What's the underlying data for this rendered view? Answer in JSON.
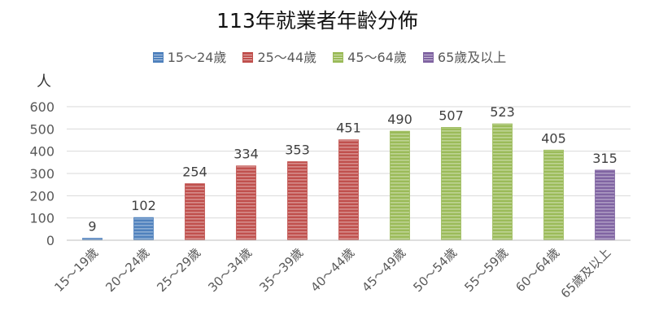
{
  "chart_data": {
    "type": "bar",
    "title": "113年就業者年齡分佈",
    "ylabel": "人",
    "xlabel": "",
    "ylim": [
      0,
      600
    ],
    "yticks": [
      0,
      100,
      200,
      300,
      400,
      500,
      600
    ],
    "grid": true,
    "legend_position": "top",
    "categories": [
      "15～19歲",
      "20～24歲",
      "25～29歲",
      "30～34歲",
      "35～39歲",
      "40～44歲",
      "45～49歲",
      "50～54歲",
      "55～59歲",
      "60～64歲",
      "65歲及以上"
    ],
    "values": [
      9,
      102,
      254,
      334,
      353,
      451,
      490,
      507,
      523,
      405,
      315
    ],
    "series": [
      {
        "name": "15～24歲",
        "color": "#4f81bd",
        "categories": [
          "15～19歲",
          "20～24歲"
        ]
      },
      {
        "name": "25～44歲",
        "color": "#c0504d",
        "categories": [
          "25～29歲",
          "30～34歲",
          "35～39歲",
          "40～44歲"
        ]
      },
      {
        "name": "45～64歲",
        "color": "#9bbb59",
        "categories": [
          "45～49歲",
          "50～54歲",
          "55～59歲",
          "60～64歲"
        ]
      },
      {
        "name": "65歲及以上",
        "color": "#8064a2",
        "categories": [
          "65歲及以上"
        ]
      }
    ]
  }
}
